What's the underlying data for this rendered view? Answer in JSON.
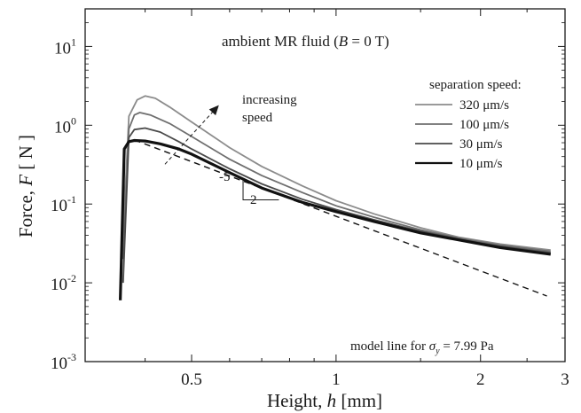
{
  "chart_data": {
    "type": "line",
    "title": "ambient MR fluid  (B = 0 T)",
    "title_parts": {
      "prefix": "ambient MR fluid  (",
      "var": "B",
      "suffix": " = 0 T)"
    },
    "xlabel": {
      "text": "Height, ",
      "var": "h",
      "unit": "  [mm]"
    },
    "ylabel": {
      "text": "Force, ",
      "var": "F",
      "unit": "  [ N ]"
    },
    "x_scale": "log",
    "y_scale": "log",
    "xlim": [
      0.3,
      3
    ],
    "ylim": [
      0.001,
      30
    ],
    "x_ticks": [
      {
        "value": 0.5,
        "label": "0.5"
      },
      {
        "value": 1,
        "label": "1"
      },
      {
        "value": 2,
        "label": "2"
      },
      {
        "value": 3,
        "label": "3"
      }
    ],
    "y_ticks": [
      {
        "value": 10,
        "base": "10",
        "exp": "1"
      },
      {
        "value": 1,
        "base": "10",
        "exp": "0"
      },
      {
        "value": 0.1,
        "base": "10",
        "exp": "-1"
      },
      {
        "value": 0.01,
        "base": "10",
        "exp": "-2"
      },
      {
        "value": 0.001,
        "base": "10",
        "exp": "-3"
      }
    ],
    "grid": false,
    "legend": {
      "title": "separation speed:",
      "position": "top-right",
      "entries": [
        "320 μm/s",
        "100 μm/s",
        "30 μm/s",
        "10 μm/s"
      ]
    },
    "series": [
      {
        "name": "320 μm/s",
        "color": "#8c8c8c",
        "x": [
          0.36,
          0.37,
          0.385,
          0.4,
          0.42,
          0.45,
          0.5,
          0.6,
          0.7,
          0.85,
          1.0,
          1.2,
          1.5,
          1.8,
          2.2,
          2.8
        ],
        "y": [
          0.04,
          1.3,
          2.1,
          2.35,
          2.2,
          1.7,
          1.1,
          0.52,
          0.3,
          0.17,
          0.11,
          0.075,
          0.05,
          0.038,
          0.031,
          0.026
        ]
      },
      {
        "name": "100 μm/s",
        "color": "#6f6f6f",
        "x": [
          0.36,
          0.37,
          0.38,
          0.39,
          0.41,
          0.45,
          0.5,
          0.6,
          0.7,
          0.85,
          1.0,
          1.2,
          1.5,
          1.8,
          2.2,
          2.8
        ],
        "y": [
          0.02,
          0.9,
          1.35,
          1.45,
          1.35,
          1.05,
          0.72,
          0.37,
          0.23,
          0.14,
          0.095,
          0.068,
          0.047,
          0.037,
          0.03,
          0.025
        ]
      },
      {
        "name": "30 μm/s",
        "color": "#4a4a4a",
        "x": [
          0.36,
          0.37,
          0.38,
          0.4,
          0.43,
          0.47,
          0.5,
          0.6,
          0.7,
          0.85,
          1.0,
          1.2,
          1.5,
          1.8,
          2.2,
          2.8
        ],
        "y": [
          0.01,
          0.7,
          0.88,
          0.92,
          0.82,
          0.62,
          0.5,
          0.28,
          0.18,
          0.115,
          0.085,
          0.063,
          0.045,
          0.036,
          0.029,
          0.024
        ]
      },
      {
        "name": "10 μm/s",
        "color": "#111111",
        "x": [
          0.355,
          0.362,
          0.37,
          0.38,
          0.4,
          0.43,
          0.47,
          0.5,
          0.6,
          0.7,
          0.85,
          1.0,
          1.2,
          1.5,
          1.8,
          2.2,
          2.8
        ],
        "y": [
          0.006,
          0.5,
          0.62,
          0.64,
          0.63,
          0.58,
          0.5,
          0.43,
          0.25,
          0.16,
          0.105,
          0.08,
          0.06,
          0.043,
          0.035,
          0.028,
          0.023
        ]
      }
    ],
    "model_line": {
      "label_prefix": "model line for ",
      "label_var": "σ",
      "label_sub": "y",
      "label_suffix": " = 7.99 Pa",
      "x": [
        0.38,
        2.75
      ],
      "y": [
        0.65,
        0.0068
      ]
    },
    "annotations": {
      "arrow_text_1": "increasing",
      "arrow_text_2": "speed",
      "slope_rise": "-5",
      "slope_run": "2"
    }
  }
}
